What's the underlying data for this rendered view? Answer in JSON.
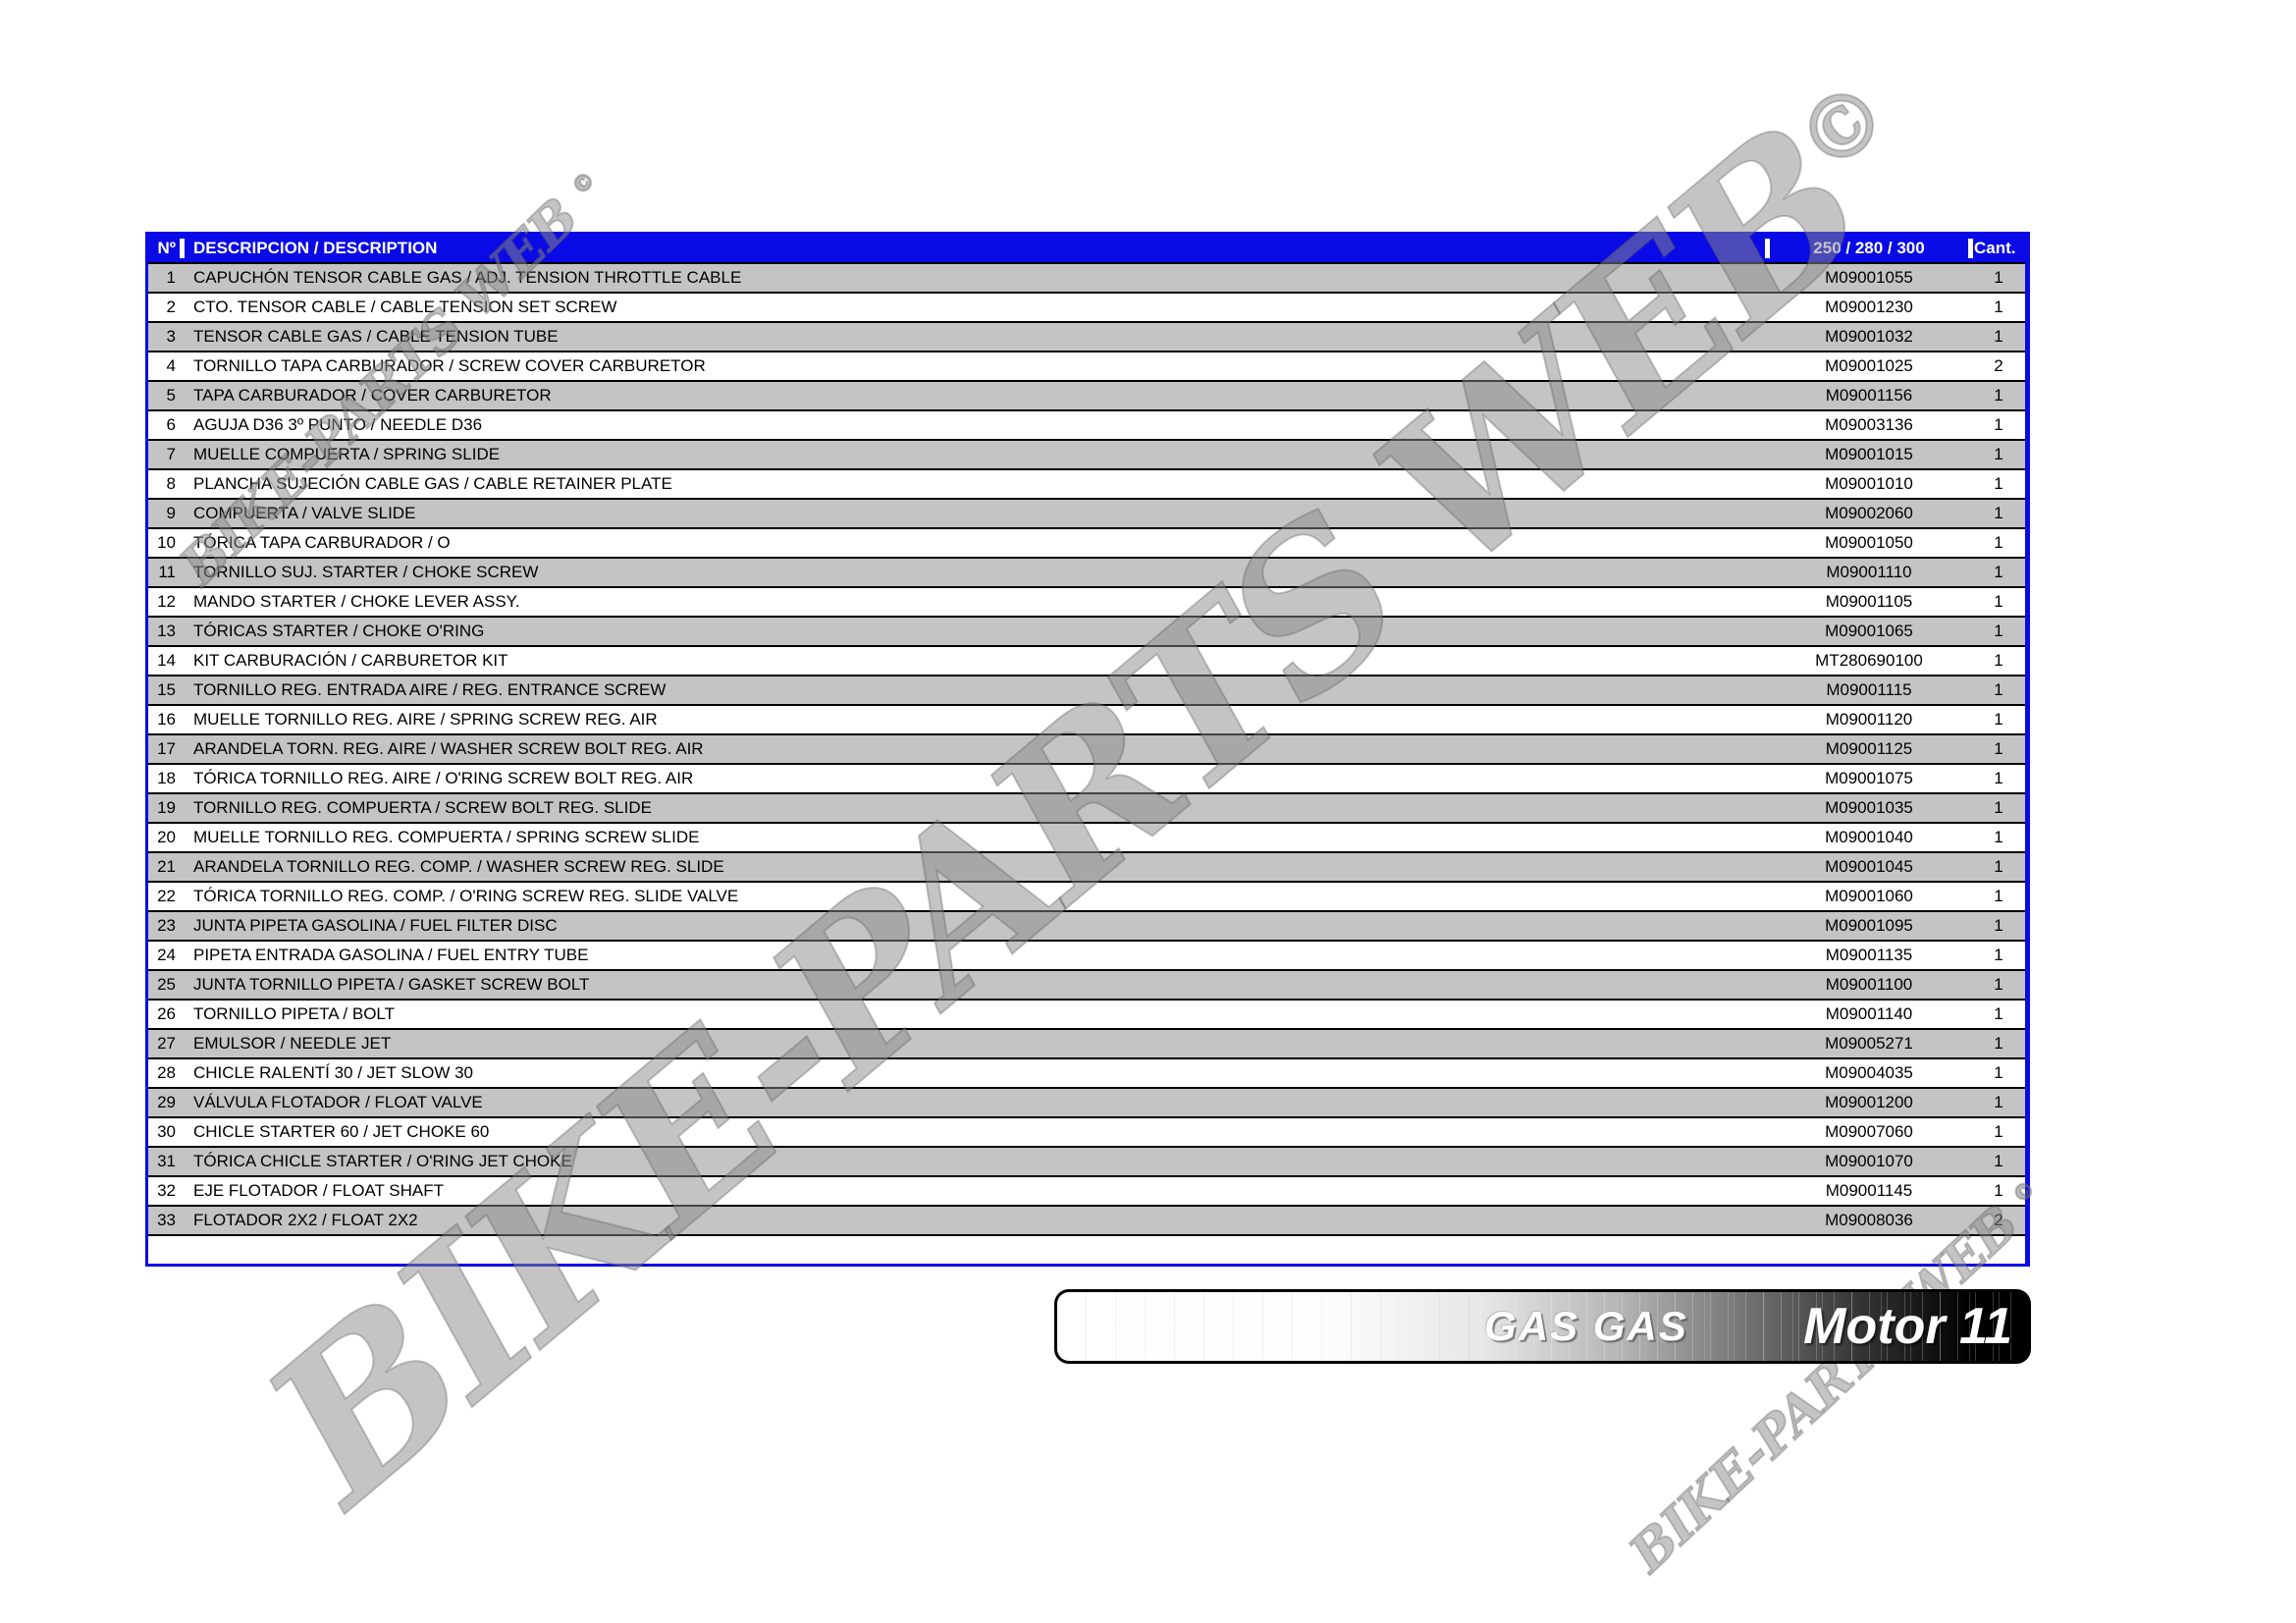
{
  "colors": {
    "header_blue": "#0A0AE6",
    "border_blue": "#0A0AE6",
    "row_gray": "#C4C4C4",
    "row_white": "#FFFFFF",
    "row_border": "#000000",
    "header_text": "#FFFFFF",
    "body_text": "#000000",
    "watermark_gray": "rgba(138,138,138,0.5)"
  },
  "watermark": {
    "text": "BIKE-PARTS WEB",
    "symbol": "©"
  },
  "table": {
    "columns": {
      "num": "Nº",
      "description": "DESCRIPCION / DESCRIPTION",
      "part": "250 / 280 / 300",
      "qty": "Cant."
    },
    "rows": [
      {
        "num": "1",
        "description": "CAPUCHÓN TENSOR CABLE GAS / ADJ. TENSION THROTTLE CABLE",
        "part": "M09001055",
        "qty": "1"
      },
      {
        "num": "2",
        "description": "CTO. TENSOR CABLE / CABLE TENSION SET SCREW",
        "part": "M09001230",
        "qty": "1"
      },
      {
        "num": "3",
        "description": "TENSOR CABLE GAS / CABLE TENSION TUBE",
        "part": "M09001032",
        "qty": "1"
      },
      {
        "num": "4",
        "description": "TORNILLO TAPA CARBURADOR / SCREW COVER CARBURETOR",
        "part": "M09001025",
        "qty": "2"
      },
      {
        "num": "5",
        "description": "TAPA CARBURADOR / COVER CARBURETOR",
        "part": "M09001156",
        "qty": "1"
      },
      {
        "num": "6",
        "description": "AGUJA D36 3º PUNTO / NEEDLE D36",
        "part": "M09003136",
        "qty": "1"
      },
      {
        "num": "7",
        "description": "MUELLE COMPUERTA / SPRING SLIDE",
        "part": "M09001015",
        "qty": "1"
      },
      {
        "num": "8",
        "description": "PLANCHA SUJECIÓN CABLE GAS / CABLE RETAINER PLATE",
        "part": "M09001010",
        "qty": "1"
      },
      {
        "num": "9",
        "description": "COMPUERTA / VALVE SLIDE",
        "part": "M09002060",
        "qty": "1"
      },
      {
        "num": "10",
        "description": "TÓRICA TAPA CARBURADOR / O",
        "part": "M09001050",
        "qty": "1"
      },
      {
        "num": "11",
        "description": "TORNILLO SUJ. STARTER / CHOKE SCREW",
        "part": "M09001110",
        "qty": "1"
      },
      {
        "num": "12",
        "description": "MANDO STARTER / CHOKE LEVER ASSY.",
        "part": "M09001105",
        "qty": "1"
      },
      {
        "num": "13",
        "description": "TÓRICAS STARTER / CHOKE O'RING",
        "part": "M09001065",
        "qty": "1"
      },
      {
        "num": "14",
        "description": "KIT CARBURACIÓN / CARBURETOR KIT",
        "part": "MT280690100",
        "qty": "1"
      },
      {
        "num": "15",
        "description": "TORNILLO REG. ENTRADA AIRE / REG. ENTRANCE SCREW",
        "part": "M09001115",
        "qty": "1"
      },
      {
        "num": "16",
        "description": "MUELLE TORNILLO REG. AIRE / SPRING SCREW REG. AIR",
        "part": "M09001120",
        "qty": "1"
      },
      {
        "num": "17",
        "description": "ARANDELA TORN. REG. AIRE / WASHER SCREW BOLT REG. AIR",
        "part": "M09001125",
        "qty": "1"
      },
      {
        "num": "18",
        "description": "TÓRICA TORNILLO REG. AIRE / O'RING SCREW BOLT REG. AIR",
        "part": "M09001075",
        "qty": "1"
      },
      {
        "num": "19",
        "description": "TORNILLO REG. COMPUERTA / SCREW BOLT REG. SLIDE",
        "part": "M09001035",
        "qty": "1"
      },
      {
        "num": "20",
        "description": "MUELLE TORNILLO REG. COMPUERTA / SPRING SCREW SLIDE",
        "part": "M09001040",
        "qty": "1"
      },
      {
        "num": "21",
        "description": "ARANDELA TORNILLO REG. COMP. / WASHER SCREW REG. SLIDE",
        "part": "M09001045",
        "qty": "1"
      },
      {
        "num": "22",
        "description": "TÓRICA TORNILLO REG. COMP. / O'RING SCREW REG. SLIDE VALVE",
        "part": "M09001060",
        "qty": "1"
      },
      {
        "num": "23",
        "description": "JUNTA PIPETA GASOLINA / FUEL FILTER DISC",
        "part": "M09001095",
        "qty": "1"
      },
      {
        "num": "24",
        "description": "PIPETA ENTRADA GASOLINA / FUEL ENTRY TUBE",
        "part": "M09001135",
        "qty": "1"
      },
      {
        "num": "25",
        "description": "JUNTA TORNILLO PIPETA / GASKET SCREW BOLT",
        "part": "M09001100",
        "qty": "1"
      },
      {
        "num": "26",
        "description": "TORNILLO PIPETA / BOLT",
        "part": "M09001140",
        "qty": "1"
      },
      {
        "num": "27",
        "description": "EMULSOR / NEEDLE JET",
        "part": "M09005271",
        "qty": "1"
      },
      {
        "num": "28",
        "description": "CHICLE RALENTÍ 30 / JET SLOW 30",
        "part": "M09004035",
        "qty": "1"
      },
      {
        "num": "29",
        "description": "VÁLVULA FLOTADOR / FLOAT VALVE",
        "part": "M09001200",
        "qty": "1"
      },
      {
        "num": "30",
        "description": "CHICLE STARTER 60 / JET CHOKE 60",
        "part": "M09007060",
        "qty": "1"
      },
      {
        "num": "31",
        "description": "TÓRICA CHICLE STARTER / O'RING JET CHOKE",
        "part": "M09001070",
        "qty": "1"
      },
      {
        "num": "32",
        "description": "EJE FLOTADOR / FLOAT SHAFT",
        "part": "M09001145",
        "qty": "1"
      },
      {
        "num": "33",
        "description": "FLOTADOR 2X2 / FLOAT 2X2",
        "part": "M09008036",
        "qty": "2"
      }
    ]
  },
  "footer_banner": {
    "brand": "GAS GAS",
    "model_label": "Motor 11"
  }
}
